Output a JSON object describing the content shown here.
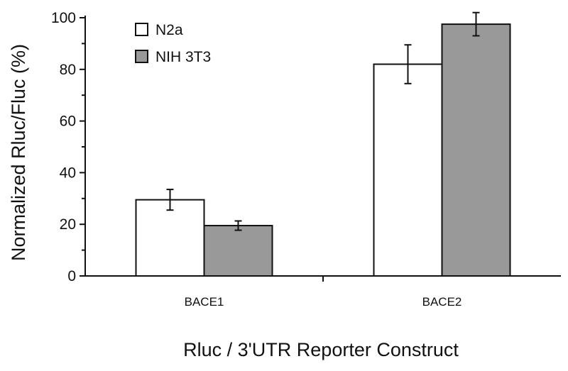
{
  "chart_data": {
    "type": "bar",
    "categories": [
      "BACE1",
      "BACE2"
    ],
    "series": [
      {
        "name": "N2a",
        "color": "#ffffff",
        "values": [
          29.5,
          82
        ],
        "errors": [
          4,
          7.5
        ]
      },
      {
        "name": "NIH 3T3",
        "color": "#999999",
        "values": [
          19.5,
          97.5
        ],
        "errors": [
          1.8,
          4.5
        ]
      }
    ],
    "yticks": [
      0,
      20,
      40,
      60,
      80,
      100
    ],
    "ylim": [
      0,
      100
    ],
    "minor_step": 10,
    "xlabel": "Rluc / 3'UTR Reporter Construct",
    "ylabel": "Normalized Rluc/Fluc (%)",
    "legend_position": "top-left",
    "grid": false
  }
}
